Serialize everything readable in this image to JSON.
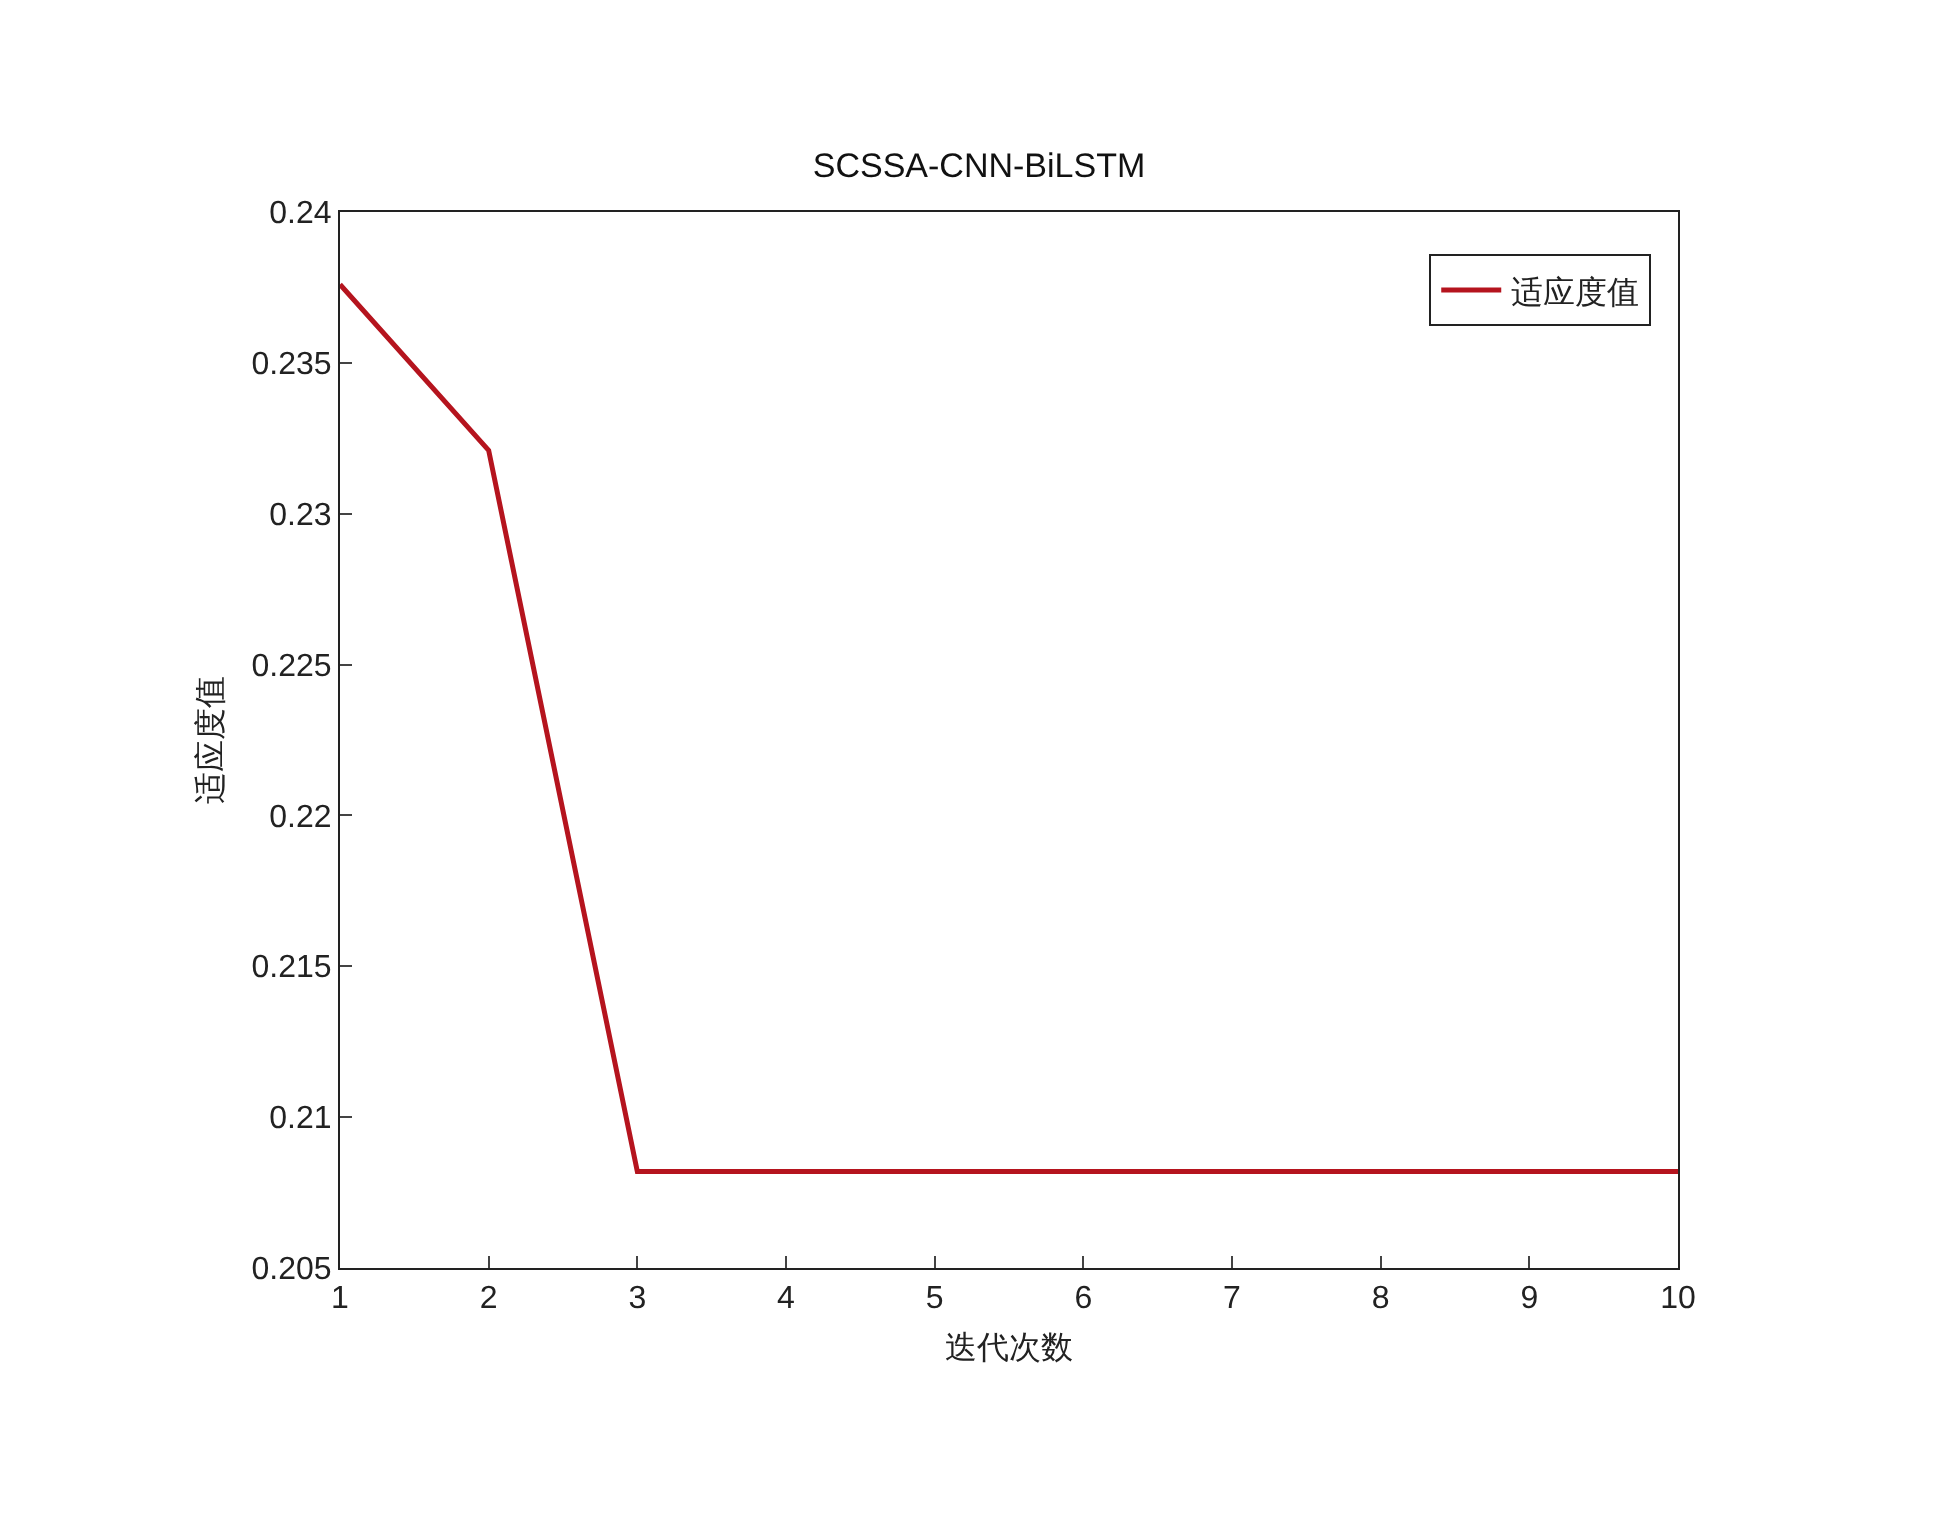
{
  "chart_data": {
    "type": "line",
    "title": "SCSSA-CNN-BiLSTM",
    "xlabel": "迭代次数",
    "ylabel": "适应度值",
    "x": [
      1,
      2,
      3,
      4,
      5,
      6,
      7,
      8,
      9,
      10
    ],
    "series": [
      {
        "name": "适应度值",
        "color": "#b5141e",
        "values": [
          0.2376,
          0.2321,
          0.2082,
          0.2082,
          0.2082,
          0.2082,
          0.2082,
          0.2082,
          0.2082,
          0.2082
        ]
      }
    ],
    "xlim": [
      1,
      10
    ],
    "xticks": [
      1,
      2,
      3,
      4,
      5,
      6,
      7,
      8,
      9,
      10
    ],
    "ylim": [
      0.205,
      0.24
    ],
    "yticks": [
      0.205,
      0.21,
      0.215,
      0.22,
      0.225,
      0.23,
      0.235,
      0.24
    ],
    "grid": false,
    "legend": "top right",
    "marker": "none",
    "line_style": "solid"
  }
}
